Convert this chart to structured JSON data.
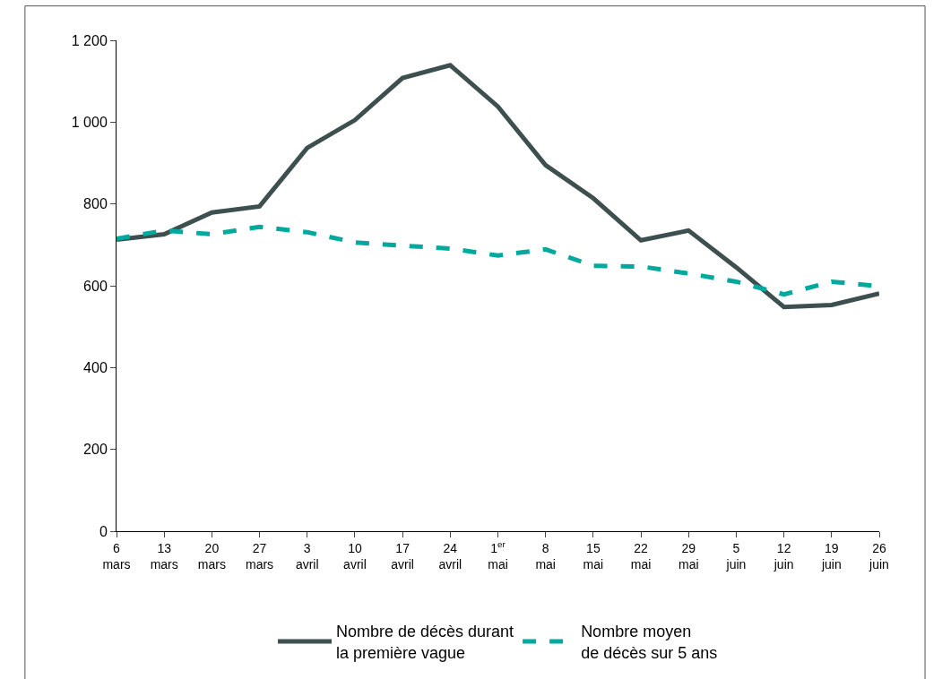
{
  "chart_data": {
    "type": "line",
    "categories": [
      "6\nmars",
      "13\nmars",
      "20\nmars",
      "27\nmars",
      "3\navril",
      "10\navril",
      "17\navril",
      "24\navril",
      "1$^{er}$\nmai",
      "8\nmai",
      "15\nmai",
      "22\nmai",
      "29\nmai",
      "5\njuin",
      "12\njuin",
      "19\njuin",
      "26\njuin"
    ],
    "series": [
      {
        "name": "Nombre de décès durant\nla première vague",
        "color": "#3d4f4f",
        "line_style": "solid",
        "values": [
          713,
          726,
          779,
          794,
          937,
          1005,
          1108,
          1139,
          1038,
          895,
          814,
          711,
          735,
          645,
          548,
          553,
          581
        ]
      },
      {
        "name": "Nombre moyen\nde décès sur 5 ans",
        "color": "#00a99d",
        "line_style": "dashed",
        "values": [
          715,
          735,
          726,
          744,
          731,
          706,
          698,
          691,
          674,
          689,
          649,
          647,
          630,
          610,
          579,
          610,
          599
        ]
      }
    ],
    "ylim": [
      0,
      1200
    ],
    "yticks": [
      0,
      {
        "value": 200,
        "label": "200"
      },
      400,
      600,
      800,
      {
        "value": 1000,
        "label": "1 000"
      },
      {
        "value": 1200,
        "label": "1 200"
      }
    ],
    "legend": "bottom"
  }
}
